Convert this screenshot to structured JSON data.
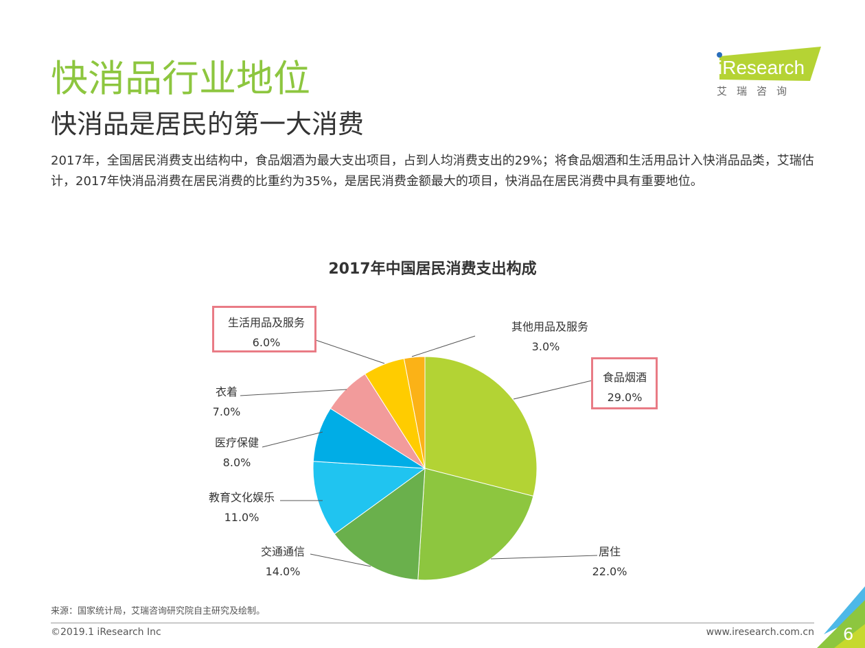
{
  "header": {
    "title": "快消品行业地位",
    "subtitle": "快消品是居民的第一大消费",
    "body": "2017年，全国居民消费支出结构中，食品烟酒为最大支出项目，占到人均消费支出的29%；将食品烟酒和生活用品计入快消品品类，艾瑞估计，2017年快消品消费在居民消费的比重约为35%，是居民消费金额最大的项目，快消品在居民消费中具有重要地位。"
  },
  "logo": {
    "text": "iResearch",
    "cn": "艾 瑞 咨 询"
  },
  "chart_data": {
    "type": "pie",
    "title": "2017年中国居民消费支出构成",
    "categories": [
      "食品烟酒",
      "居住",
      "交通通信",
      "教育文化娱乐",
      "医疗保健",
      "衣着",
      "生活用品及服务",
      "其他用品及服务"
    ],
    "values": [
      29.0,
      22.0,
      14.0,
      11.0,
      8.0,
      7.0,
      6.0,
      3.0
    ],
    "value_labels": [
      "29.0%",
      "22.0%",
      "14.0%",
      "11.0%",
      "8.0%",
      "7.0%",
      "6.0%",
      "3.0%"
    ],
    "colors": [
      "#b3d334",
      "#8dc63f",
      "#6ab04c",
      "#20c4f0",
      "#00ade6",
      "#f29b9b",
      "#ffcc00",
      "#fbb217"
    ],
    "highlighted": [
      "食品烟酒",
      "生活用品及服务"
    ],
    "start": "12 o'clock",
    "direction": "clockwise"
  },
  "footer": {
    "source": "来源：国家统计局，艾瑞咨询研究院自主研究及绘制。",
    "copyright": "©2019.1 iResearch Inc",
    "url": "www.iresearch.com.cn",
    "page": "6"
  }
}
